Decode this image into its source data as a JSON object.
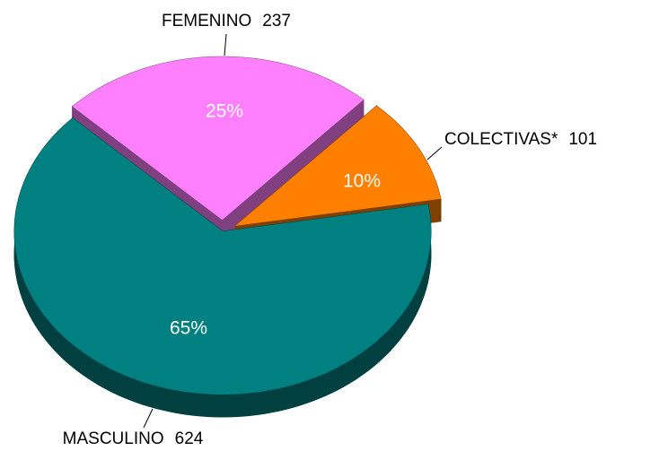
{
  "chart_data": {
    "type": "pie3d",
    "categories": [
      "FEMENINO",
      "COLECTIVAS*",
      "MASCULINO"
    ],
    "values": [
      237,
      101,
      624
    ],
    "percent_labels": [
      "25%",
      "10%",
      "65%"
    ],
    "colors": [
      "#ff80ff",
      "#ff8000",
      "#008080"
    ]
  }
}
